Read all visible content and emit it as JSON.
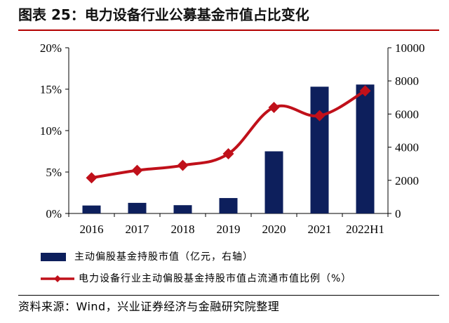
{
  "title": "图表 25：电力设备行业公募基金市值占比变化",
  "source": "资料来源：Wind，兴业证券经济与金融研究院整理",
  "colors": {
    "bar": "#0d1f5c",
    "line": "#c0101a",
    "title_rule": "#b30000"
  },
  "chart_data": {
    "type": "bar+line",
    "categories": [
      "2016",
      "2017",
      "2018",
      "2019",
      "2020",
      "2021",
      "2022H1"
    ],
    "series": [
      {
        "name": "主动偏股基金持股市值（亿元，右轴）",
        "type": "bar",
        "axis": "right",
        "values": [
          480,
          640,
          500,
          930,
          3750,
          7650,
          7780
        ]
      },
      {
        "name": "电力设备行业主动偏股基金持股市值占流通市值比例（%）",
        "type": "line",
        "axis": "left",
        "values": [
          4.3,
          5.2,
          5.8,
          7.2,
          12.8,
          11.8,
          14.8
        ]
      }
    ],
    "y_left": {
      "ticks": [
        "0%",
        "5%",
        "10%",
        "15%",
        "20%"
      ],
      "tick_values": [
        0,
        5,
        10,
        15,
        20
      ],
      "ylim": [
        0,
        20
      ]
    },
    "y_right": {
      "ticks": [
        "0",
        "2000",
        "4000",
        "6000",
        "8000",
        "10000"
      ],
      "tick_values": [
        0,
        2000,
        4000,
        6000,
        8000,
        10000
      ],
      "ylim": [
        0,
        10000
      ]
    },
    "legend_placement": "bottom",
    "grid": false
  }
}
